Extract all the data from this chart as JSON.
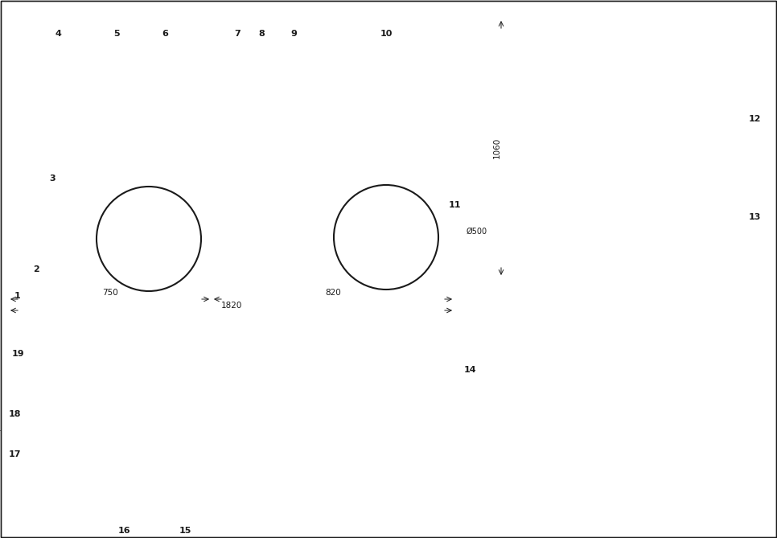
{
  "bg_color": "#ffffff",
  "line_color": "#1a1a1a",
  "fig_width": 9.66,
  "fig_height": 6.69
}
